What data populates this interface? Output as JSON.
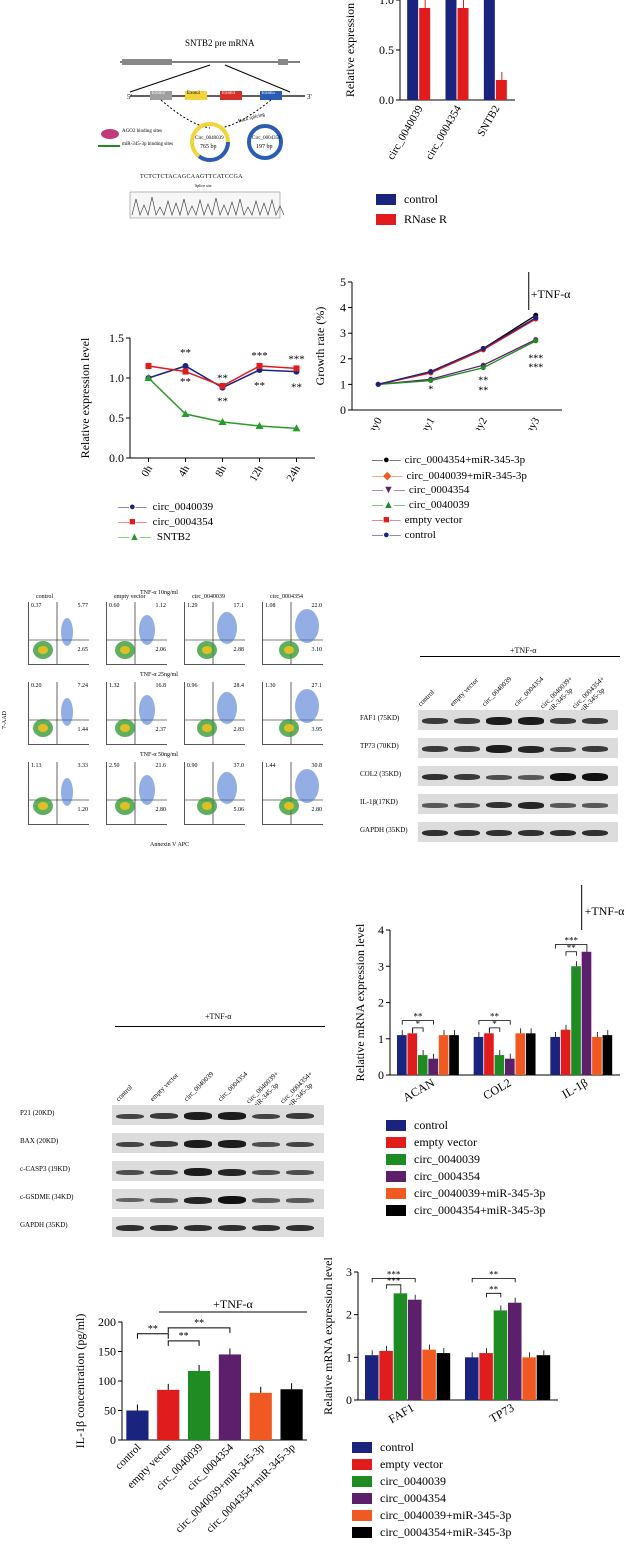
{
  "colors": {
    "control": "#1a237e",
    "empty_vector": "#e01c1c",
    "circ_0040039": "#1e8c23",
    "circ_0004354": "#5b1f6b",
    "circ_0040039_mir": "#f05a22",
    "circ_0004354_mir": "#000000",
    "rnase": "#e01c1c",
    "sntb2": "#2a9a2a"
  },
  "panelA": {
    "title": "SNTB2 pre mRNA",
    "exons": [
      "Exon2",
      "Exon3",
      "Exon4",
      "Exon5"
    ],
    "ago2_label": "AGO2 binding sites",
    "mir_label": "miR-345-3p binding sites",
    "circ1_name": "Circ_0040039",
    "circ1_len": "765 bp",
    "circ2_name": "Circ_0004354",
    "circ2_len": "197 bp",
    "back_splicing": "Back splicing",
    "junction_seq": "TCTCTCTACAGCAAGTTCATCCGA",
    "splice_junction": "Splice site"
  },
  "panelB": {
    "chart_data": {
      "type": "bar",
      "categories": [
        "circ_0040039",
        "circ_0004354",
        "SNTB2"
      ],
      "series": [
        {
          "name": "control",
          "values": [
            1.0,
            1.0,
            1.0
          ]
        },
        {
          "name": "RNase R",
          "values": [
            0.92,
            0.92,
            0.2
          ]
        }
      ],
      "ylabel": "Relative expression",
      "ylim": [
        0,
        1.0
      ],
      "yticks": [
        "0.0",
        "0.5",
        "1.0"
      ]
    },
    "legend": [
      "control",
      "RNase R"
    ]
  },
  "panelC": {
    "chart_data": {
      "type": "line",
      "categories": [
        "0h",
        "4h",
        "8h",
        "12h",
        "24h"
      ],
      "series": [
        {
          "name": "circ_0040039",
          "values": [
            1.0,
            1.15,
            0.88,
            1.1,
            1.08
          ]
        },
        {
          "name": "circ_0004354",
          "values": [
            1.15,
            1.08,
            0.9,
            1.15,
            1.12
          ]
        },
        {
          "name": "SNTB2",
          "values": [
            1.0,
            0.55,
            0.45,
            0.4,
            0.37
          ]
        }
      ],
      "ylabel": "Relative expression level",
      "ylim": [
        0,
        1.5
      ],
      "yticks": [
        "0.0",
        "0.5",
        "1.0",
        "1.5"
      ]
    },
    "stars": [
      "**",
      "**",
      "**",
      "**",
      "***",
      "**",
      "***",
      "**",
      "**"
    ],
    "legend": [
      "circ_0040039",
      "circ_0004354",
      "SNTB2"
    ]
  },
  "panelD": {
    "chart_data": {
      "type": "line",
      "categories": [
        "day0",
        "day1",
        "day2",
        "day3"
      ],
      "series": [
        {
          "name": "circ_0004354+miR-345-3p",
          "values": [
            1.0,
            1.5,
            2.4,
            3.7
          ]
        },
        {
          "name": "circ_0040039+miR-345-3p",
          "values": [
            1.0,
            1.45,
            2.35,
            3.6
          ]
        },
        {
          "name": "circ_0004354",
          "values": [
            1.0,
            1.2,
            1.75,
            2.75
          ]
        },
        {
          "name": "circ_0040039",
          "values": [
            1.0,
            1.15,
            1.65,
            2.7
          ]
        },
        {
          "name": "empty vector",
          "values": [
            1.0,
            1.45,
            2.35,
            3.55
          ]
        },
        {
          "name": "control",
          "values": [
            1.0,
            1.5,
            2.4,
            3.6
          ]
        }
      ],
      "ylabel": "Growth rate (%)",
      "ylim": [
        0,
        5
      ],
      "yticks": [
        "0",
        "1",
        "2",
        "3",
        "4",
        "5"
      ]
    },
    "tnf": "+TNF-α",
    "stars": [
      "*",
      "**",
      "**",
      "***",
      "***"
    ],
    "legend": [
      "circ_0004354+miR-345-3p",
      "circ_0040039+miR-345-3p",
      "circ_0004354",
      "circ_0040039",
      "empty vector",
      "control"
    ]
  },
  "panelE": {
    "col_labels": [
      "control",
      "empty vector",
      "circ_0040039",
      "circ_0004354"
    ],
    "header_tnf": "TNF-α 10ng/ml",
    "row_titles": [
      "TNF-α 25ng/ml",
      "TNF-α 50ng/ml"
    ],
    "ylabel": "7-AAD",
    "xlabel": "Annexin V APC",
    "quad_values": [
      [
        "5.77",
        "2.65",
        "1.12",
        "2.06",
        "17.1",
        "2.88",
        "22.0",
        "3.10"
      ],
      [
        "7.24",
        "1.44",
        "16.8",
        "2.37",
        "28.4",
        "2.83",
        "27.1",
        "3.95"
      ],
      [
        "3.33",
        "1.20",
        "21.6",
        "2.80",
        "37.0",
        "5.06",
        "30.8",
        "2.80"
      ]
    ],
    "q1_values": [
      [
        "0.37",
        "0.60",
        "1.29",
        "1.08"
      ],
      [
        "0.20",
        "1.32",
        "0.96",
        "1.30"
      ],
      [
        "1.13",
        "2.50",
        "0.90",
        "1.44"
      ]
    ]
  },
  "panelF": {
    "tnf": "+TNF-α",
    "lanes": [
      "control",
      "empty vector",
      "circ_0040039",
      "circ_0004354",
      "circ_0040039+ miR-345-3p",
      "circ_0004354+ miR-345-3p"
    ],
    "rows": [
      "FAF1 (75KD)",
      "TP73 (70KD)",
      "COL2 (35KD)",
      "IL-1β(17KD)",
      "GAPDH (35KD)"
    ]
  },
  "panelG": {
    "tnf": "+TNF-α",
    "lanes": [
      "control",
      "empty vector",
      "circ_0040039",
      "circ_0004354",
      "circ_0040039+ miR-345-3p",
      "circ_0004354+ miR-345-3p"
    ],
    "rows": [
      "P21 (20KD)",
      "BAX (20KD)",
      "c-CASP3 (19KD)",
      "c-GSDME (34KD)",
      "GAPDH (35KD)"
    ]
  },
  "panelH": {
    "chart_data": {
      "type": "bar",
      "categories": [
        "ACAN",
        "COL2",
        "IL-1β"
      ],
      "series": [
        {
          "name": "control",
          "values": [
            1.1,
            1.05,
            1.05
          ]
        },
        {
          "name": "empty vector",
          "values": [
            1.15,
            1.15,
            1.25
          ]
        },
        {
          "name": "circ_0040039",
          "values": [
            0.55,
            0.55,
            3.0
          ]
        },
        {
          "name": "circ_0004354",
          "values": [
            0.45,
            0.45,
            3.4
          ]
        },
        {
          "name": "circ_0040039+miR-345-3p",
          "values": [
            1.1,
            1.15,
            1.05
          ]
        },
        {
          "name": "circ_0004354+miR-345-3p",
          "values": [
            1.1,
            1.15,
            1.1
          ]
        }
      ],
      "ylabel": "Relative mRNA expression level",
      "ylim": [
        0,
        4
      ],
      "yticks": [
        "0",
        "1",
        "2",
        "3",
        "4"
      ]
    },
    "tnf": "+TNF-α",
    "stars": [
      "**",
      "*",
      "**",
      "*",
      "***",
      "**"
    ],
    "legend": [
      "control",
      "empty vector",
      "circ_0040039",
      "circ_0004354",
      "circ_0040039+miR-345-3p",
      "circ_0004354+miR-345-3p"
    ]
  },
  "panelI": {
    "chart_data": {
      "type": "bar",
      "categories": [
        "control",
        "empty vector",
        "circ_0040039",
        "circ_0004354",
        "circ_0040039+miR-345-3p",
        "circ_0004354+miR-345-3p"
      ],
      "values": [
        50,
        85,
        117,
        145,
        80,
        86
      ],
      "ylabel": "IL-1β concentration (pg/ml)",
      "ylim": [
        0,
        200
      ],
      "yticks": [
        "0",
        "50",
        "100",
        "150",
        "200"
      ]
    },
    "tnf": "+TNF-α",
    "stars": [
      "**",
      "**",
      "**"
    ]
  },
  "panelJ": {
    "chart_data": {
      "type": "bar",
      "categories": [
        "FAF1",
        "TP73"
      ],
      "series": [
        {
          "name": "control",
          "values": [
            1.05,
            1.0
          ]
        },
        {
          "name": "empty vector",
          "values": [
            1.15,
            1.1
          ]
        },
        {
          "name": "circ_0040039",
          "values": [
            2.5,
            2.1
          ]
        },
        {
          "name": "circ_0004354",
          "values": [
            2.35,
            2.28
          ]
        },
        {
          "name": "circ_0040039+miR-345-3p",
          "values": [
            1.18,
            1.0
          ]
        },
        {
          "name": "circ_0004354+miR-345-3p",
          "values": [
            1.1,
            1.05
          ]
        }
      ],
      "ylabel": "Relative mRNA expression level",
      "ylim": [
        0,
        3
      ],
      "yticks": [
        "0",
        "1",
        "2",
        "3"
      ]
    },
    "stars": [
      "***",
      "***",
      "**",
      "**"
    ],
    "legend": [
      "control",
      "empty vector",
      "circ_0040039",
      "circ_0004354",
      "circ_0040039+miR-345-3p",
      "circ_0004354+miR-345-3p"
    ]
  }
}
